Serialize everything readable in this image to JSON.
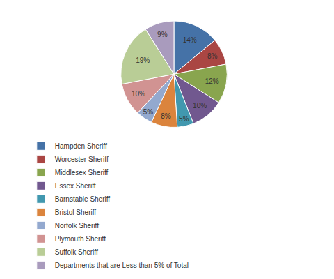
{
  "chart_data": {
    "type": "pie",
    "categories": [
      "Hampden Sheriff",
      "Worcester Sheriff",
      "Middlesex Sheriff",
      "Essex Sheriff",
      "Barnstable Sheriff",
      "Bristol Sheriff",
      "Norfolk Sheriff",
      "Plymouth Sheriff",
      "Suffolk Sheriff",
      "Departments that are Less than 5% of Total"
    ],
    "values": [
      14,
      8,
      12,
      10,
      5,
      8,
      5,
      10,
      19,
      9
    ],
    "value_labels": [
      "14%",
      "8%",
      "12%",
      "10%",
      "5%",
      "8%",
      "5%",
      "10%",
      "19%",
      "9%"
    ],
    "colors": [
      "#4572A7",
      "#AA4643",
      "#89A54E",
      "#71588F",
      "#4198AF",
      "#DB843D",
      "#93A9CF",
      "#D19392",
      "#B9CD96",
      "#A99BBD"
    ],
    "data_labels": true,
    "legend": "bottom"
  }
}
